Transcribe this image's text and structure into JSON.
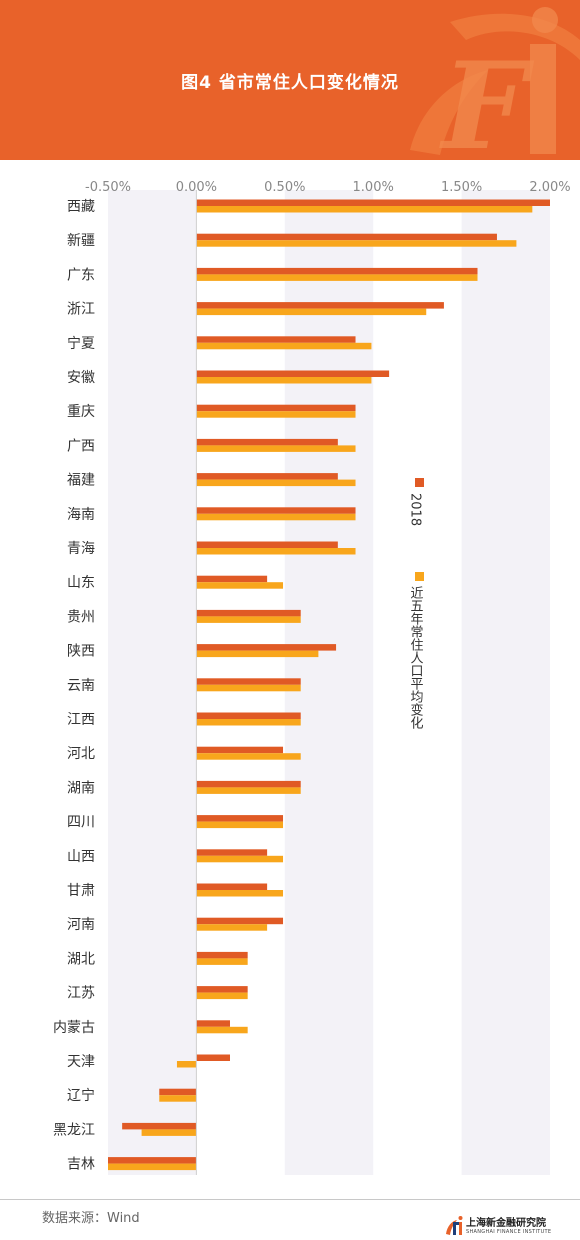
{
  "title": "图4 省市常住人口变化情况",
  "source": "数据来源：Wind",
  "logo": {
    "mark": "SFI",
    "name_cn": "上海新金融研究院",
    "name_en": "SHANGHAI FINANCE INSTITUTE"
  },
  "colors": {
    "header_bg": "#e8622a",
    "series_2018": "#e05a25",
    "series_avg": "#f8a61c",
    "band": "#f3f2f7"
  },
  "chart_data": {
    "type": "bar",
    "orientation": "horizontal",
    "x_ticks": [
      "-0.50%",
      "0.00%",
      "0.50%",
      "1.00%",
      "1.50%",
      "2.00%"
    ],
    "xlim": [
      -0.5,
      2.0
    ],
    "x_unit": "%",
    "categories": [
      "西藏",
      "新疆",
      "广东",
      "浙江",
      "宁夏",
      "安徽",
      "重庆",
      "广西",
      "福建",
      "海南",
      "青海",
      "山东",
      "贵州",
      "陕西",
      "云南",
      "江西",
      "河北",
      "湖南",
      "四川",
      "山西",
      "甘肃",
      "河南",
      "湖北",
      "江苏",
      "内蒙古",
      "天津",
      "辽宁",
      "黑龙江",
      "吉林"
    ],
    "series": [
      {
        "name": "2018",
        "color": "#e05a25",
        "values": [
          2.0,
          1.7,
          1.59,
          1.4,
          0.9,
          1.09,
          0.9,
          0.8,
          0.8,
          0.9,
          0.8,
          0.4,
          0.59,
          0.79,
          0.59,
          0.59,
          0.49,
          0.59,
          0.49,
          0.4,
          0.4,
          0.49,
          0.29,
          0.29,
          0.19,
          0.19,
          -0.21,
          -0.42,
          -0.5
        ]
      },
      {
        "name": "近五年常住人口平均变化",
        "color": "#f8a61c",
        "values": [
          1.9,
          1.81,
          1.59,
          1.3,
          0.99,
          0.99,
          0.9,
          0.9,
          0.9,
          0.9,
          0.9,
          0.49,
          0.59,
          0.69,
          0.59,
          0.59,
          0.59,
          0.59,
          0.49,
          0.49,
          0.49,
          0.4,
          0.29,
          0.29,
          0.29,
          -0.11,
          -0.21,
          -0.31,
          -0.5
        ]
      }
    ],
    "legend_position": "right-middle",
    "grid": false,
    "alternating_bands": true
  }
}
